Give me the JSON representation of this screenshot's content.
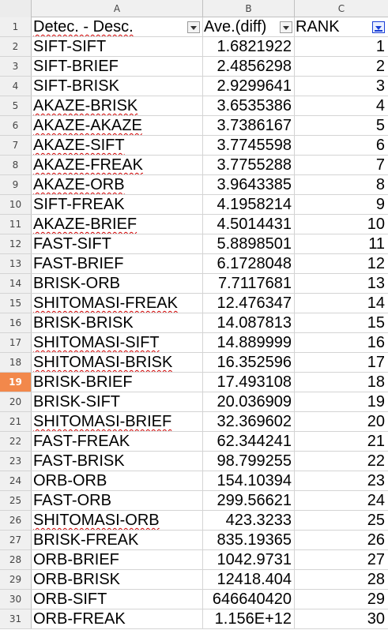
{
  "columns": [
    "A",
    "B",
    "C"
  ],
  "header": {
    "row_number": "1",
    "col_a": "Detec. - Desc.",
    "col_b": "Ave.(diff)",
    "col_c": "RANK"
  },
  "active_row": "19",
  "rows": [
    {
      "n": "2",
      "name": "SIFT-SIFT",
      "ave": "1.6821922",
      "rank": "1"
    },
    {
      "n": "3",
      "name": "SIFT-BRIEF",
      "ave": "2.4856298",
      "rank": "2"
    },
    {
      "n": "4",
      "name": "SIFT-BRISK",
      "ave": "2.9299641",
      "rank": "3"
    },
    {
      "n": "5",
      "name": "AKAZE-BRISK",
      "ave": "3.6535386",
      "rank": "4"
    },
    {
      "n": "6",
      "name": "AKAZE-AKAZE",
      "ave": "3.7386167",
      "rank": "5"
    },
    {
      "n": "7",
      "name": "AKAZE-SIFT",
      "ave": "3.7745598",
      "rank": "6"
    },
    {
      "n": "8",
      "name": "AKAZE-FREAK",
      "ave": "3.7755288",
      "rank": "7"
    },
    {
      "n": "9",
      "name": "AKAZE-ORB",
      "ave": "3.9643385",
      "rank": "8"
    },
    {
      "n": "10",
      "name": "SIFT-FREAK",
      "ave": "4.1958214",
      "rank": "9"
    },
    {
      "n": "11",
      "name": "AKAZE-BRIEF",
      "ave": "4.5014431",
      "rank": "10"
    },
    {
      "n": "12",
      "name": "FAST-SIFT",
      "ave": "5.8898501",
      "rank": "11"
    },
    {
      "n": "13",
      "name": "FAST-BRIEF",
      "ave": "6.1728048",
      "rank": "12"
    },
    {
      "n": "14",
      "name": "BRISK-ORB",
      "ave": "7.7117681",
      "rank": "13"
    },
    {
      "n": "15",
      "name": "SHITOMASI-FREAK",
      "ave": "12.476347",
      "rank": "14"
    },
    {
      "n": "16",
      "name": "BRISK-BRISK",
      "ave": "14.087813",
      "rank": "15"
    },
    {
      "n": "17",
      "name": "SHITOMASI-SIFT",
      "ave": "14.889999",
      "rank": "16"
    },
    {
      "n": "18",
      "name": "SHITOMASI-BRISK",
      "ave": "16.352596",
      "rank": "17"
    },
    {
      "n": "19",
      "name": "BRISK-BRIEF",
      "ave": "17.493108",
      "rank": "18"
    },
    {
      "n": "20",
      "name": "BRISK-SIFT",
      "ave": "20.036909",
      "rank": "19"
    },
    {
      "n": "21",
      "name": "SHITOMASI-BRIEF",
      "ave": "32.369602",
      "rank": "20"
    },
    {
      "n": "22",
      "name": "FAST-FREAK",
      "ave": "62.344241",
      "rank": "21"
    },
    {
      "n": "23",
      "name": "FAST-BRISK",
      "ave": "98.799255",
      "rank": "22"
    },
    {
      "n": "24",
      "name": "ORB-ORB",
      "ave": "154.10394",
      "rank": "23"
    },
    {
      "n": "25",
      "name": "FAST-ORB",
      "ave": "299.56621",
      "rank": "24"
    },
    {
      "n": "26",
      "name": "SHITOMASI-ORB",
      "ave": "423.3233",
      "rank": "25"
    },
    {
      "n": "27",
      "name": "BRISK-FREAK",
      "ave": "835.19365",
      "rank": "26"
    },
    {
      "n": "28",
      "name": "ORB-BRIEF",
      "ave": "1042.9731",
      "rank": "27"
    },
    {
      "n": "29",
      "name": "ORB-BRISK",
      "ave": "12418.404",
      "rank": "28"
    },
    {
      "n": "30",
      "name": "ORB-SIFT",
      "ave": "646640420",
      "rank": "29"
    },
    {
      "n": "31",
      "name": "ORB-FREAK",
      "ave": "1.156E+12",
      "rank": "30"
    }
  ],
  "colors": {
    "active_row_header": "#f2884b",
    "spellcheck_underline": "#d00000",
    "active_filter": "#1a3fd6"
  },
  "icons": {
    "filter_a": "filter-dropdown-icon",
    "filter_b": "filter-dropdown-icon",
    "filter_c": "sort-filter-active-icon"
  }
}
